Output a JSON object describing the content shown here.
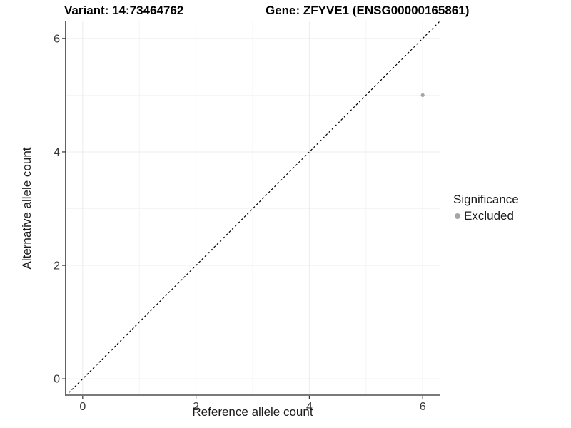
{
  "title": {
    "variant": "Variant: 14:73464762",
    "gene": "Gene: ZFYVE1 (ENSG00000165861)"
  },
  "legend": {
    "title": "Significance",
    "items": [
      {
        "label": "Excluded",
        "color": "#a5a5a5"
      }
    ]
  },
  "chart_data": {
    "type": "scatter",
    "xlabel": "Reference allele count",
    "ylabel": "Alternative allele count",
    "xlim": [
      -0.3,
      6.3
    ],
    "ylim": [
      -0.3,
      6.3
    ],
    "x_ticks": [
      0,
      2,
      4,
      6
    ],
    "y_ticks": [
      0,
      2,
      4,
      6
    ],
    "x_minor": [
      1,
      3,
      5
    ],
    "y_minor": [
      1,
      3,
      5
    ],
    "grid": true,
    "legend_position": "right",
    "series": [
      {
        "name": "Excluded",
        "color": "#a5a5a5",
        "points": [
          {
            "x": 6,
            "y": 5
          }
        ]
      }
    ],
    "reference_line": {
      "type": "identity",
      "style": "dashed",
      "color": "#000000",
      "from": [
        -0.3,
        -0.3
      ],
      "to": [
        6.3,
        6.3
      ]
    },
    "colors": {
      "grid_major": "#ececec",
      "grid_minor": "#f4f4f4",
      "axis_line_left": "#2e2e2e",
      "axis_line_bottom": "#7a7a7a",
      "tick_mark": "#333333",
      "tick_text": "#383838",
      "point": "#a5a5a5"
    }
  }
}
